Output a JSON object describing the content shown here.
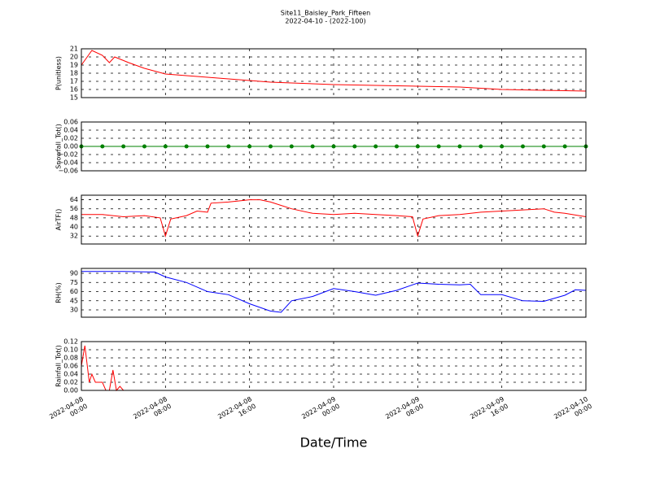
{
  "chart_data": [
    {
      "type": "line",
      "title": "Site11_Baisley_Park_Fifteen",
      "subtitle": "2022-04-10 - (2022-100)",
      "ylabel": "P(unitless)",
      "color": "#ff0000",
      "grid": true,
      "xlim": [
        "2022-04-08 00:00",
        "2022-04-10 00:00"
      ],
      "xticks": [
        "2022-04-08 00:00",
        "2022-04-08 08:00",
        "2022-04-08 16:00",
        "2022-04-09 00:00",
        "2022-04-09 08:00",
        "2022-04-09 16:00",
        "2022-04-10 00:00"
      ],
      "ylim": [
        15,
        21
      ],
      "yticks": [
        15,
        16,
        17,
        18,
        19,
        20,
        21
      ],
      "x": [
        "2022-04-08 00:00",
        "2022-04-08 01:00",
        "2022-04-08 02:00",
        "2022-04-08 02:40",
        "2022-04-08 03:10",
        "2022-04-08 04:30",
        "2022-04-08 06:00",
        "2022-04-08 08:00",
        "2022-04-08 10:00",
        "2022-04-08 12:00",
        "2022-04-08 14:00",
        "2022-04-08 16:00",
        "2022-04-08 18:00",
        "2022-04-08 20:00",
        "2022-04-08 22:00",
        "2022-04-09 00:00",
        "2022-04-09 04:00",
        "2022-04-09 08:00",
        "2022-04-09 12:00",
        "2022-04-09 16:00",
        "2022-04-09 20:00",
        "2022-04-10 00:00"
      ],
      "values": [
        19.0,
        20.8,
        20.2,
        19.3,
        20.0,
        19.3,
        18.6,
        17.9,
        17.7,
        17.5,
        17.3,
        17.1,
        16.9,
        16.8,
        16.7,
        16.6,
        16.5,
        16.4,
        16.3,
        16.0,
        15.9,
        15.8
      ]
    },
    {
      "type": "line",
      "ylabel": "Snowfall_Tot()",
      "color": "#008000",
      "marker": "o",
      "grid": true,
      "xlim": [
        "2022-04-08 00:00",
        "2022-04-10 00:00"
      ],
      "xticks": [
        "2022-04-08 00:00",
        "2022-04-08 08:00",
        "2022-04-08 16:00",
        "2022-04-09 00:00",
        "2022-04-09 08:00",
        "2022-04-09 16:00",
        "2022-04-10 00:00"
      ],
      "ylim": [
        -0.06,
        0.06
      ],
      "yticks": [
        {
          "value": -0.06,
          "label": "−0.06"
        },
        {
          "value": -0.04,
          "label": "−0.04"
        },
        {
          "value": -0.02,
          "label": "−0.02"
        },
        {
          "value": 0,
          "label": "0.00"
        },
        {
          "value": 0.02,
          "label": "0.02"
        },
        {
          "value": 0.04,
          "label": "0.04"
        },
        {
          "value": 0.06,
          "label": "0.06"
        }
      ],
      "x": [
        "2022-04-08 00:00",
        "2022-04-08 02:00",
        "2022-04-08 04:00",
        "2022-04-08 06:00",
        "2022-04-08 08:00",
        "2022-04-08 10:00",
        "2022-04-08 12:00",
        "2022-04-08 14:00",
        "2022-04-08 16:00",
        "2022-04-08 18:00",
        "2022-04-08 20:00",
        "2022-04-08 22:00",
        "2022-04-09 00:00",
        "2022-04-09 02:00",
        "2022-04-09 04:00",
        "2022-04-09 06:00",
        "2022-04-09 08:00",
        "2022-04-09 10:00",
        "2022-04-09 12:00",
        "2022-04-09 14:00",
        "2022-04-09 16:00",
        "2022-04-09 18:00",
        "2022-04-09 20:00",
        "2022-04-09 22:00",
        "2022-04-10 00:00"
      ],
      "values": [
        0,
        0,
        0,
        0,
        0,
        0,
        0,
        0,
        0,
        0,
        0,
        0,
        0,
        0,
        0,
        0,
        0,
        0,
        0,
        0,
        0,
        0,
        0,
        0,
        0
      ]
    },
    {
      "type": "line",
      "ylabel": "AirTF()",
      "color": "#ff0000",
      "grid": true,
      "xlim": [
        "2022-04-08 00:00",
        "2022-04-10 00:00"
      ],
      "xticks": [
        "2022-04-08 00:00",
        "2022-04-08 08:00",
        "2022-04-08 16:00",
        "2022-04-09 00:00",
        "2022-04-09 08:00",
        "2022-04-09 16:00",
        "2022-04-10 00:00"
      ],
      "ylim": [
        25,
        68
      ],
      "yticks": [
        32,
        40,
        48,
        56,
        64
      ],
      "x": [
        "2022-04-08 00:00",
        "2022-04-08 02:00",
        "2022-04-08 04:00",
        "2022-04-08 06:00",
        "2022-04-08 07:30",
        "2022-04-08 08:00",
        "2022-04-08 08:30",
        "2022-04-08 10:00",
        "2022-04-08 11:00",
        "2022-04-08 12:00",
        "2022-04-08 12:20",
        "2022-04-08 14:00",
        "2022-04-08 16:00",
        "2022-04-08 17:00",
        "2022-04-08 18:00",
        "2022-04-08 20:00",
        "2022-04-08 22:00",
        "2022-04-09 00:00",
        "2022-04-09 02:00",
        "2022-04-09 04:00",
        "2022-04-09 06:00",
        "2022-04-09 07:30",
        "2022-04-09 08:00",
        "2022-04-09 08:30",
        "2022-04-09 10:00",
        "2022-04-09 12:00",
        "2022-04-09 14:00",
        "2022-04-09 16:00",
        "2022-04-09 18:00",
        "2022-04-09 20:00",
        "2022-04-09 21:00",
        "2022-04-09 22:00",
        "2022-04-10 00:00"
      ],
      "values": [
        51,
        51,
        49,
        50,
        48,
        32,
        47,
        50,
        54,
        53,
        61,
        62,
        64,
        64,
        62,
        56,
        52,
        51,
        52,
        51,
        50,
        49,
        32,
        47,
        50,
        51,
        53,
        54,
        55,
        56,
        53,
        52,
        49
      ]
    },
    {
      "type": "line",
      "ylabel": "RH(%)",
      "color": "#0000ff",
      "grid": true,
      "xlim": [
        "2022-04-08 00:00",
        "2022-04-10 00:00"
      ],
      "xticks": [
        "2022-04-08 00:00",
        "2022-04-08 08:00",
        "2022-04-08 16:00",
        "2022-04-09 00:00",
        "2022-04-09 08:00",
        "2022-04-09 16:00",
        "2022-04-10 00:00"
      ],
      "ylim": [
        18,
        98
      ],
      "yticks": [
        30,
        45,
        60,
        75,
        90
      ],
      "x": [
        "2022-04-08 00:00",
        "2022-04-08 04:00",
        "2022-04-08 07:00",
        "2022-04-08 08:00",
        "2022-04-08 10:00",
        "2022-04-08 12:00",
        "2022-04-08 14:00",
        "2022-04-08 16:00",
        "2022-04-08 18:00",
        "2022-04-08 19:00",
        "2022-04-08 20:00",
        "2022-04-08 22:00",
        "2022-04-09 00:00",
        "2022-04-09 02:00",
        "2022-04-09 04:00",
        "2022-04-09 06:00",
        "2022-04-09 08:00",
        "2022-04-09 10:00",
        "2022-04-09 12:00",
        "2022-04-09 13:00",
        "2022-04-09 14:00",
        "2022-04-09 16:00",
        "2022-04-09 18:00",
        "2022-04-09 20:00",
        "2022-04-09 22:00",
        "2022-04-09 23:00",
        "2022-04-10 00:00"
      ],
      "values": [
        93,
        93,
        92,
        84,
        75,
        60,
        55,
        40,
        28,
        26,
        45,
        52,
        65,
        60,
        54,
        62,
        74,
        72,
        71,
        72,
        55,
        55,
        45,
        44,
        54,
        63,
        62
      ]
    },
    {
      "type": "line",
      "ylabel": "Rainfall_Tot()",
      "xlabel": "Date/Time",
      "color": "#ff0000",
      "grid": true,
      "xlim": [
        "2022-04-08 00:00",
        "2022-04-10 00:00"
      ],
      "xticks": [
        {
          "value": "2022-04-08 00:00",
          "label": "2022-04-08\n00:00"
        },
        {
          "value": "2022-04-08 08:00",
          "label": "2022-04-08\n08:00"
        },
        {
          "value": "2022-04-08 16:00",
          "label": "2022-04-08\n16:00"
        },
        {
          "value": "2022-04-09 00:00",
          "label": "2022-04-09\n00:00"
        },
        {
          "value": "2022-04-09 08:00",
          "label": "2022-04-09\n08:00"
        },
        {
          "value": "2022-04-09 16:00",
          "label": "2022-04-09\n16:00"
        },
        {
          "value": "2022-04-10 00:00",
          "label": "2022-04-10\n00:00"
        }
      ],
      "ylim": [
        0,
        0.12
      ],
      "yticks": [
        {
          "value": 0,
          "label": "0.00"
        },
        {
          "value": 0.02,
          "label": "0.02"
        },
        {
          "value": 0.04,
          "label": "0.04"
        },
        {
          "value": 0.06,
          "label": "0.06"
        },
        {
          "value": 0.08,
          "label": "0.08"
        },
        {
          "value": 0.1,
          "label": "0.10"
        },
        {
          "value": 0.12,
          "label": "0.12"
        }
      ],
      "x": [
        "2022-04-08 00:00",
        "2022-04-08 00:20",
        "2022-04-08 00:45",
        "2022-04-08 01:00",
        "2022-04-08 01:20",
        "2022-04-08 02:00",
        "2022-04-08 02:20",
        "2022-04-08 02:40",
        "2022-04-08 03:00",
        "2022-04-08 03:20",
        "2022-04-08 03:40",
        "2022-04-08 04:00",
        "2022-04-08 08:00",
        "2022-04-08 16:00",
        "2022-04-09 00:00",
        "2022-04-09 08:00",
        "2022-04-09 16:00",
        "2022-04-10 00:00"
      ],
      "values": [
        0.06,
        0.11,
        0.02,
        0.04,
        0.02,
        0.02,
        0,
        0,
        0.05,
        0,
        0.01,
        0,
        0,
        0,
        0,
        0,
        0,
        0
      ]
    }
  ]
}
